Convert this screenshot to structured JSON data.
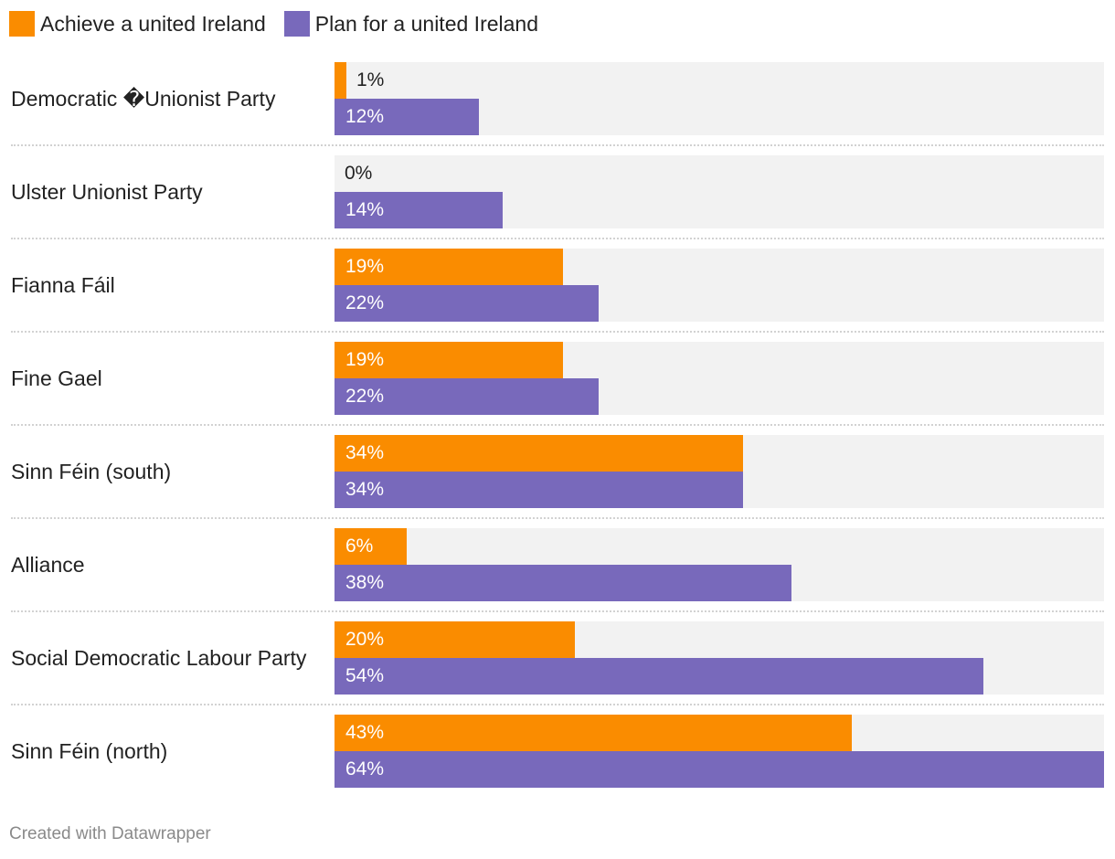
{
  "chart_data": {
    "type": "bar",
    "orientation": "horizontal",
    "categories": [
      "Democratic �Unionist Party",
      "Ulster Unionist Party",
      "Fianna Fáil",
      "Fine Gael",
      "Sinn Féin (south)",
      "Alliance",
      "Social Democratic Labour Party",
      "Sinn Féin (north)"
    ],
    "series": [
      {
        "name": "Achieve a united Ireland",
        "color": "#fa8c00",
        "values": [
          1,
          0,
          19,
          19,
          34,
          6,
          20,
          43
        ],
        "labels": [
          "1%",
          "0%",
          "19%",
          "19%",
          "34%",
          "6%",
          "20%",
          "43%"
        ]
      },
      {
        "name": "Plan for a united Ireland",
        "color": "#7869bb",
        "values": [
          12,
          14,
          22,
          22,
          34,
          38,
          54,
          64
        ],
        "labels": [
          "12%",
          "14%",
          "22%",
          "22%",
          "34%",
          "38%",
          "54%",
          "64%"
        ]
      }
    ],
    "xlim": [
      0,
      64
    ],
    "legend": "top-left",
    "grid": false
  },
  "footer": {
    "credit": "Created with Datawrapper"
  }
}
